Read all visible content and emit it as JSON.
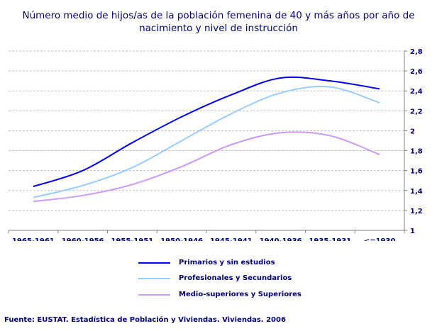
{
  "chart_data": {
    "type": "line",
    "title_lines": [
      "Número medio de hijos/as de la población femenina de 40 y más años por año de",
      "nacimiento y nivel de instrucción"
    ],
    "categories": [
      "1965-1961",
      "1960-1956",
      "1955-1951",
      "1950-1946",
      "1945-1941",
      "1940-1936",
      "1935-1931",
      "<=1930"
    ],
    "ylim": [
      1,
      2.8
    ],
    "yticks": [
      "1",
      "1,2",
      "1,4",
      "1,6",
      "1,8",
      "2",
      "2,2",
      "2,4",
      "2,6",
      "2,8"
    ],
    "yaxis_position": "right",
    "grid": "horizontal dashed",
    "legend_position": "bottom",
    "series": [
      {
        "name": "Primarios y sin estudios",
        "color": "#0000FF",
        "values": [
          1.44,
          1.6,
          1.88,
          2.14,
          2.36,
          2.53,
          2.5,
          2.42
        ]
      },
      {
        "name": "Profesionales y Secundarios",
        "color": "#99CCFF",
        "values": [
          1.33,
          1.45,
          1.63,
          1.9,
          2.17,
          2.38,
          2.44,
          2.28
        ]
      },
      {
        "name": "Medio-superiores y Superiores",
        "color": "#CC99FF",
        "values": [
          1.29,
          1.35,
          1.46,
          1.64,
          1.86,
          1.98,
          1.95,
          1.76
        ]
      }
    ]
  },
  "footer": "Fuente: EUSTAT. Estadística de Población y Viviendas. Viviendas. 2006"
}
